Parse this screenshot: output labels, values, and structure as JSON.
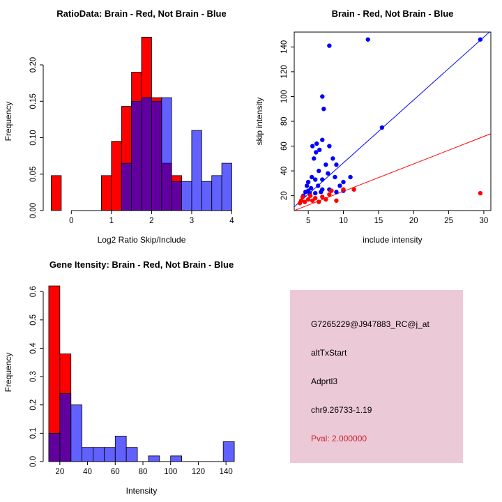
{
  "figure": {
    "background": "#ffffff"
  },
  "chart_data": [
    {
      "id": "ratio-histogram",
      "type": "bar",
      "title": "RatioData: Brain - Red, Not Brain - Blue",
      "xlabel": "Log2 Ratio Skip/Include",
      "ylabel": "Frequency",
      "xlim": [
        -0.7,
        4.2
      ],
      "ylim": [
        0,
        0.245
      ],
      "xticks": [
        0,
        1,
        2,
        3,
        4
      ],
      "xtick_labels": [
        "0",
        "1",
        "2",
        "3",
        "4"
      ],
      "yticks": [
        0,
        0.05,
        0.1,
        0.15,
        0.2
      ],
      "ytick_labels": [
        "0.00",
        "0.05",
        "0.10",
        "0.15",
        "0.20"
      ],
      "bin_width": 0.25,
      "series": [
        {
          "name": "Brain",
          "color": "#ff0000",
          "opacity": 1,
          "bins": [
            [
              -0.5,
              0.048
            ],
            [
              0.75,
              0.048
            ],
            [
              1.0,
              0.095
            ],
            [
              1.25,
              0.143
            ],
            [
              1.5,
              0.19
            ],
            [
              1.75,
              0.238
            ],
            [
              2.0,
              0.155
            ],
            [
              2.25,
              0.065
            ],
            [
              2.5,
              0.048
            ]
          ]
        },
        {
          "name": "Not Brain",
          "color": "#0000ff",
          "opacity": 0.62,
          "bins": [
            [
              1.25,
              0.065
            ],
            [
              1.5,
              0.15
            ],
            [
              1.75,
              0.155
            ],
            [
              2.0,
              0.15
            ],
            [
              2.25,
              0.155
            ],
            [
              2.5,
              0.04
            ],
            [
              2.75,
              0.04
            ],
            [
              3.0,
              0.11
            ],
            [
              3.25,
              0.04
            ],
            [
              3.5,
              0.048
            ],
            [
              3.75,
              0.065
            ]
          ]
        }
      ]
    },
    {
      "id": "intensity-scatter",
      "type": "scatter",
      "title": "Brain - Red, Not Brain - Blue",
      "xlabel": "include intensity",
      "ylabel": "skip intensity",
      "xlim": [
        3,
        31
      ],
      "ylim": [
        8,
        152
      ],
      "xticks": [
        5,
        10,
        15,
        20,
        25,
        30
      ],
      "xtick_labels": [
        "5",
        "10",
        "15",
        "20",
        "25",
        "30"
      ],
      "yticks": [
        20,
        40,
        60,
        80,
        100,
        120,
        140
      ],
      "ytick_labels": [
        "20",
        "40",
        "60",
        "80",
        "100",
        "120",
        "140"
      ],
      "box": true,
      "series": [
        {
          "name": "Not Brain",
          "color": "#0000ff",
          "points": [
            [
              4.3,
              20
            ],
            [
              4.6,
              23
            ],
            [
              4.8,
              28
            ],
            [
              5,
              24
            ],
            [
              5,
              31
            ],
            [
              5.2,
              22
            ],
            [
              5.4,
              26
            ],
            [
              5.5,
              35
            ],
            [
              5.6,
              60
            ],
            [
              5.8,
              50
            ],
            [
              6,
              22
            ],
            [
              6,
              33
            ],
            [
              6.1,
              55
            ],
            [
              6.2,
              62
            ],
            [
              6.4,
              28
            ],
            [
              6.5,
              40
            ],
            [
              6.6,
              57
            ],
            [
              6.8,
              23
            ],
            [
              7,
              25
            ],
            [
              7,
              33
            ],
            [
              7,
              65
            ],
            [
              7,
              100
            ],
            [
              7.2,
              90
            ],
            [
              7.5,
              45
            ],
            [
              7.8,
              38
            ],
            [
              8,
              25
            ],
            [
              8,
              60
            ],
            [
              8,
              141
            ],
            [
              8.5,
              50
            ],
            [
              8.8,
              35
            ],
            [
              9,
              23
            ],
            [
              9,
              45
            ],
            [
              9.5,
              28
            ],
            [
              10,
              24
            ],
            [
              10,
              31
            ],
            [
              11,
              35
            ],
            [
              13.5,
              146
            ],
            [
              15.5,
              75
            ],
            [
              29.5,
              146
            ]
          ]
        },
        {
          "name": "Brain",
          "color": "#ff0000",
          "points": [
            [
              3.8,
              14
            ],
            [
              4,
              16
            ],
            [
              4.2,
              19
            ],
            [
              4.5,
              15
            ],
            [
              5,
              17
            ],
            [
              5.3,
              20
            ],
            [
              5.6,
              16
            ],
            [
              6,
              18
            ],
            [
              6.5,
              15
            ],
            [
              7,
              19
            ],
            [
              7.5,
              17
            ],
            [
              8,
              21
            ],
            [
              8.3,
              24
            ],
            [
              9,
              16
            ],
            [
              10,
              25
            ],
            [
              11.5,
              25
            ],
            [
              29.5,
              22
            ]
          ]
        }
      ],
      "lines": [
        {
          "color": "#0000ff",
          "from": [
            3,
            11
          ],
          "to": [
            31,
            153
          ]
        },
        {
          "color": "#ff0000",
          "from": [
            3,
            8
          ],
          "to": [
            31,
            70
          ]
        }
      ]
    },
    {
      "id": "gene-intensity-histogram",
      "type": "bar",
      "title": "Gene Itensity: Brain - Red, Not Brain - Blue",
      "xlabel": "Intensity",
      "ylabel": "Frequency",
      "xlim": [
        8,
        150
      ],
      "ylim": [
        0,
        0.63
      ],
      "xticks": [
        20,
        40,
        60,
        80,
        100,
        120,
        140
      ],
      "xtick_labels": [
        "20",
        "40",
        "60",
        "80",
        "100",
        "120",
        "140"
      ],
      "yticks": [
        0,
        0.1,
        0.2,
        0.3,
        0.4,
        0.5,
        0.6
      ],
      "ytick_labels": [
        "0.0",
        "0.1",
        "0.2",
        "0.3",
        "0.4",
        "0.5",
        "0.6"
      ],
      "bin_width": 8,
      "series": [
        {
          "name": "Brain",
          "color": "#ff0000",
          "opacity": 1,
          "bins": [
            [
              12,
              0.62
            ],
            [
              20,
              0.38
            ]
          ]
        },
        {
          "name": "Not Brain",
          "color": "#0000ff",
          "opacity": 0.62,
          "bins": [
            [
              12,
              0.1
            ],
            [
              20,
              0.24
            ],
            [
              28,
              0.2
            ],
            [
              36,
              0.05
            ],
            [
              44,
              0.05
            ],
            [
              52,
              0.05
            ],
            [
              60,
              0.09
            ],
            [
              68,
              0.05
            ],
            [
              84,
              0.02
            ],
            [
              100,
              0.02
            ],
            [
              138,
              0.07
            ]
          ]
        }
      ]
    }
  ],
  "info_panel": {
    "background": "#ecc9d6",
    "lines": [
      {
        "text": "G7265229@J947883_RC@j_at",
        "color": "#000000"
      },
      {
        "text": "altTxStart",
        "color": "#000000"
      },
      {
        "text": "Adprtl3",
        "color": "#000000"
      },
      {
        "text": "chr9.26733-1.19",
        "color": "#000000"
      },
      {
        "text": "Pval: 2.000000",
        "color": "#cc2030"
      }
    ]
  }
}
